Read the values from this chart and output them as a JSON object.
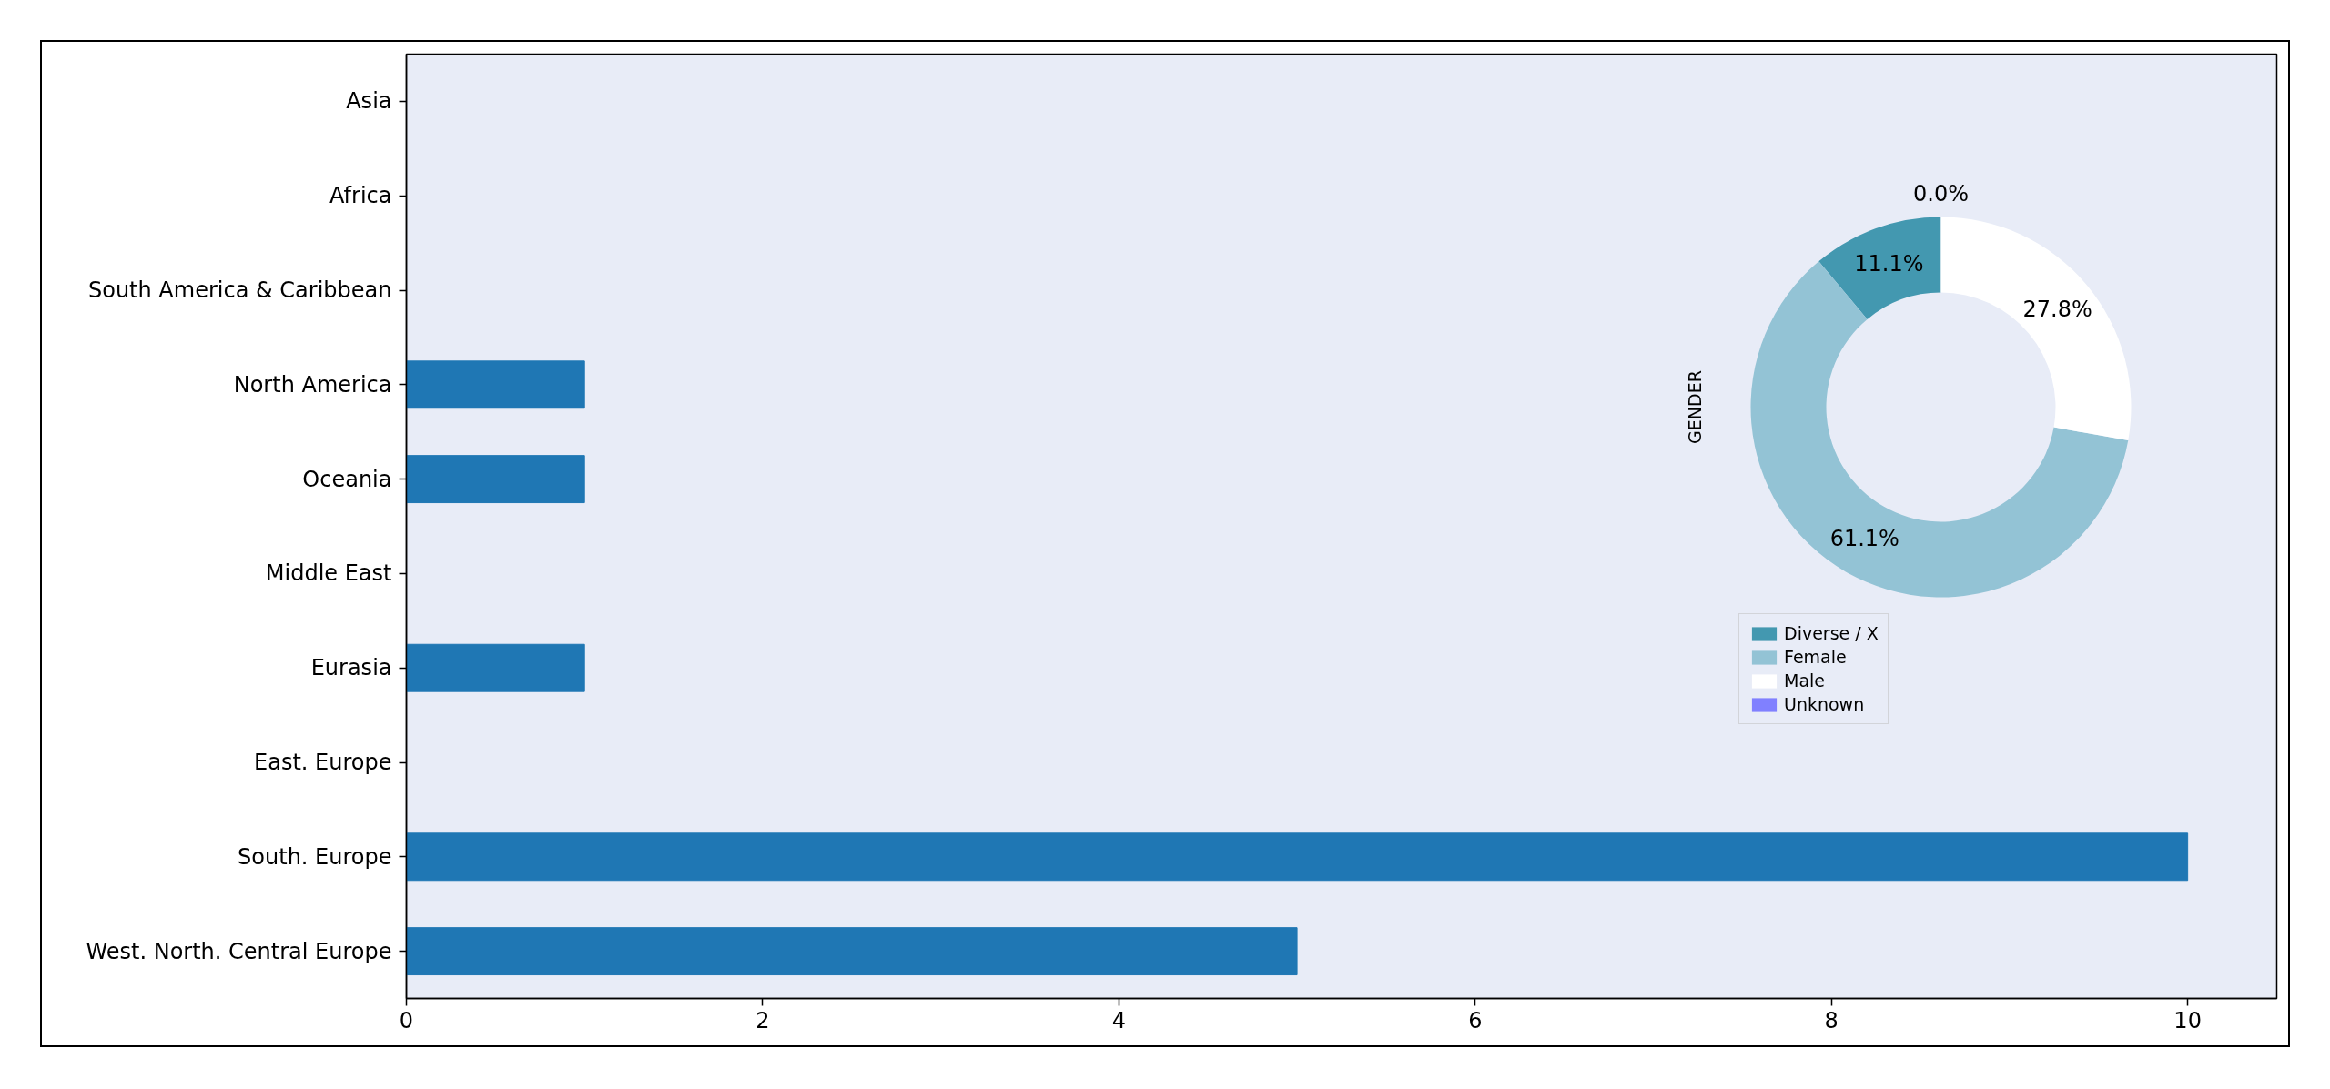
{
  "chart_data": [
    {
      "type": "bar",
      "orientation": "horizontal",
      "categories": [
        "Asia",
        "Africa",
        "South America & Caribbean",
        "North America",
        "Oceania",
        "Middle East",
        "Eurasia",
        "East. Europe",
        "South. Europe",
        "West. North. Central Europe"
      ],
      "values": [
        0,
        0,
        0,
        1,
        1,
        0,
        1,
        0,
        10,
        5
      ],
      "color": "#1f77b4",
      "xlim": [
        0,
        10.5
      ],
      "xticks": [
        0,
        2,
        4,
        6,
        8,
        10
      ],
      "grid": false
    },
    {
      "type": "donut",
      "ylabel": "GENDER",
      "categories": [
        "Diverse / X",
        "Female",
        "Male",
        "Unknown"
      ],
      "values": [
        11.1,
        61.1,
        27.8,
        0.0
      ],
      "colors": [
        "#4398b0",
        "#93c3d5",
        "#ffffff",
        "#8080ff"
      ],
      "value_labels": [
        "11.1%",
        "61.1%",
        "27.8%",
        "0.0%"
      ],
      "legend": "bottom left"
    }
  ]
}
